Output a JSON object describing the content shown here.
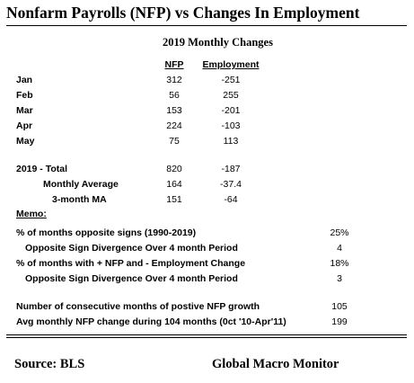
{
  "title": "Nonfarm Payrolls (NFP) vs Changes In Employment",
  "subtitle": "2019 Monthly Changes",
  "columns": {
    "nfp": "NFP",
    "employment": "Employment"
  },
  "months": [
    {
      "label": "Jan",
      "nfp": "312",
      "employment": "-251"
    },
    {
      "label": "Feb",
      "nfp": "56",
      "employment": "255"
    },
    {
      "label": "Mar",
      "nfp": "153",
      "employment": "-201"
    },
    {
      "label": "Apr",
      "nfp": "224",
      "employment": "-103"
    },
    {
      "label": "May",
      "nfp": "75",
      "employment": "113"
    }
  ],
  "summary": [
    {
      "label": "2019 - Total",
      "nfp": "820",
      "employment": "-187"
    },
    {
      "label": "Monthly Average",
      "nfp": "164",
      "employment": "-37.4"
    },
    {
      "label": "3-month MA",
      "nfp": "151",
      "employment": "-64"
    }
  ],
  "memo": {
    "heading": "Memo:",
    "items": [
      {
        "label": "% of months opposite signs (1990-2019)",
        "value": "25%"
      },
      {
        "label": "Opposite Sign Divergence Over 4 month Period",
        "value": "4"
      },
      {
        "label": "% of months with + NFP and - Employment Change",
        "value": "18%"
      },
      {
        "label": "Opposite Sign Divergence Over 4 month Period",
        "value": "3"
      },
      {
        "label": "Number of consecutive months of postive NFP growth",
        "value": "105"
      },
      {
        "label": "Avg monthly NFP change during 104 months (0ct '10-Apr'11)",
        "value": "199"
      }
    ]
  },
  "footer": {
    "source": "Source:  BLS",
    "brand": "Global Macro Monitor"
  }
}
